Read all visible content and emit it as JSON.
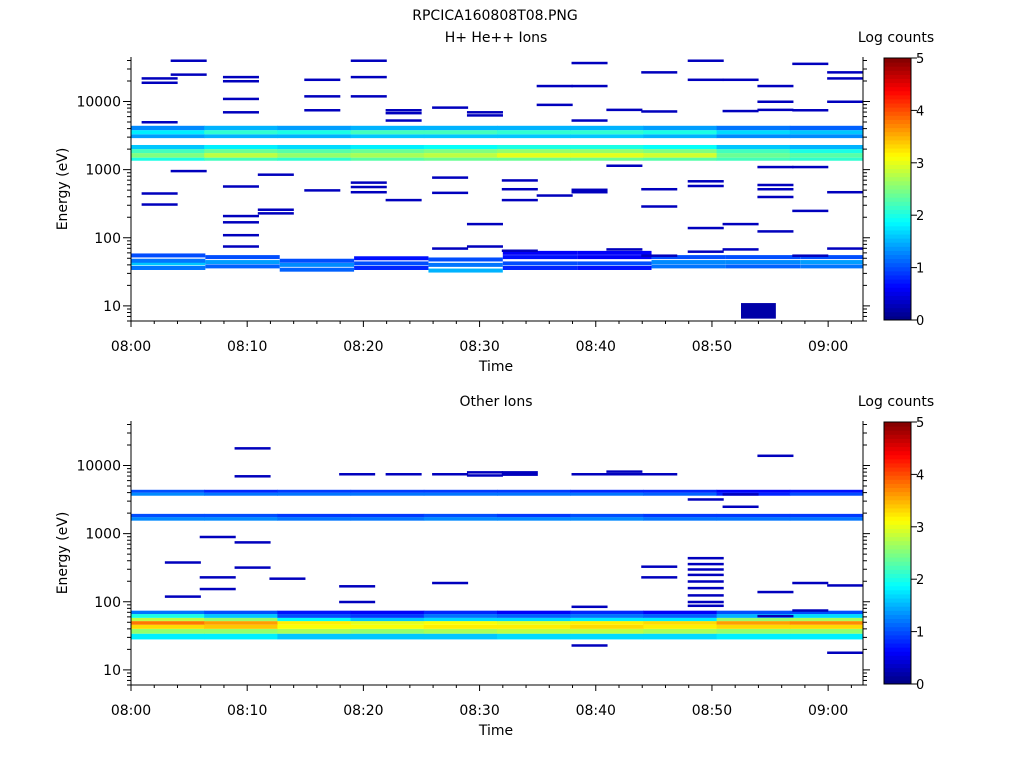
{
  "figure_title": "RPCICA160808T08.PNG",
  "chart_data": [
    {
      "type": "heatmap",
      "title": "H+ He++ Ions",
      "xlabel": "Time",
      "ylabel": "Energy (eV)",
      "x_ticks": [
        "08:00",
        "08:10",
        "08:20",
        "08:30",
        "08:40",
        "08:50",
        "09:00"
      ],
      "y_ticks": [
        "10",
        "100",
        "1000",
        "10000"
      ],
      "y_scale": "log",
      "ylim": [
        6,
        45000
      ],
      "xlim_minutes": [
        0,
        63
      ],
      "colorbar": {
        "label": "Log counts",
        "ticks": [
          "0",
          "1",
          "2",
          "3",
          "4",
          "5"
        ],
        "range": [
          0,
          5
        ]
      },
      "segments": [
        {
          "t": [
            0,
            6.4
          ],
          "ymid": [
            36,
            42,
            46,
            55
          ],
          "v": [
            1.2,
            1.6,
            1.2,
            1.0
          ]
        },
        {
          "t": [
            6.4,
            12.8
          ],
          "ymid": [
            38,
            44,
            52
          ],
          "v": [
            1.1,
            1.4,
            1.0
          ]
        },
        {
          "t": [
            12.8,
            19.2
          ],
          "ymid": [
            34,
            40,
            46
          ],
          "v": [
            1.1,
            1.3,
            1.0
          ]
        },
        {
          "t": [
            19.2,
            25.6
          ],
          "ymid": [
            36,
            42,
            50
          ],
          "v": [
            0.8,
            1.0,
            0.7
          ]
        },
        {
          "t": [
            25.6,
            32
          ],
          "ymid": [
            33,
            40,
            48
          ],
          "v": [
            1.5,
            1.2,
            1.0
          ]
        },
        {
          "t": [
            32,
            38.4
          ],
          "ymid": [
            36,
            42,
            52,
            60
          ],
          "v": [
            0.8,
            1.0,
            0.7,
            0.6
          ]
        },
        {
          "t": [
            38.4,
            44.8
          ],
          "ymid": [
            36,
            42,
            52,
            60
          ],
          "v": [
            0.7,
            1.0,
            0.6,
            0.6
          ]
        },
        {
          "t": [
            44.8,
            51.2
          ],
          "ymid": [
            38,
            44,
            52
          ],
          "v": [
            1.2,
            1.3,
            1.0
          ]
        },
        {
          "t": [
            51.2,
            57.6
          ],
          "ymid": [
            38,
            44,
            52
          ],
          "v": [
            1.1,
            1.3,
            1.0
          ]
        },
        {
          "t": [
            57.6,
            63
          ],
          "ymid": [
            38,
            44,
            52
          ],
          "v": [
            1.2,
            1.4,
            1.0
          ]
        }
      ],
      "bands": [
        {
          "e": [
            1350,
            1500
          ],
          "v": [
            2.0,
            2.2,
            2.1,
            2.3,
            2.4,
            2.4,
            2.4,
            2.3,
            2.2,
            2.1
          ]
        },
        {
          "e": [
            1500,
            1750
          ],
          "v": [
            2.5,
            2.8,
            2.6,
            2.7,
            2.8,
            3.0,
            3.0,
            2.9,
            2.4,
            2.3
          ]
        },
        {
          "e": [
            1750,
            2000
          ],
          "v": [
            2.2,
            2.4,
            2.3,
            2.4,
            2.5,
            2.6,
            2.6,
            2.5,
            2.2,
            2.0
          ]
        },
        {
          "e": [
            2000,
            2300
          ],
          "v": [
            1.6,
            1.8,
            1.7,
            1.8,
            1.9,
            2.0,
            2.0,
            1.9,
            1.6,
            1.5
          ]
        },
        {
          "e": [
            2900,
            3300
          ],
          "v": [
            1.4,
            1.5,
            1.5,
            1.6,
            1.6,
            1.6,
            1.6,
            1.5,
            1.3,
            1.3
          ]
        },
        {
          "e": [
            3300,
            3800
          ],
          "v": [
            1.8,
            2.1,
            2.0,
            2.2,
            2.2,
            2.1,
            2.1,
            2.0,
            1.7,
            1.6
          ]
        },
        {
          "e": [
            3800,
            4400
          ],
          "v": [
            1.3,
            1.5,
            1.4,
            1.5,
            1.5,
            1.5,
            1.5,
            1.4,
            1.2,
            1.1
          ]
        }
      ],
      "specks": [
        [
          1,
          22000
        ],
        [
          1,
          19000
        ],
        [
          1,
          5000
        ],
        [
          1,
          450
        ],
        [
          1,
          310
        ],
        [
          3.5,
          40000
        ],
        [
          3.5,
          25000
        ],
        [
          3.5,
          960
        ],
        [
          8,
          23000
        ],
        [
          8,
          20000
        ],
        [
          8,
          11000
        ],
        [
          8,
          7000
        ],
        [
          8,
          570
        ],
        [
          8,
          210
        ],
        [
          8,
          170
        ],
        [
          8,
          110
        ],
        [
          8,
          75
        ],
        [
          11,
          850
        ],
        [
          11,
          260
        ],
        [
          11,
          230
        ],
        [
          15,
          21000
        ],
        [
          15,
          12000
        ],
        [
          15,
          7500
        ],
        [
          15,
          500
        ],
        [
          19,
          40000
        ],
        [
          19,
          23000
        ],
        [
          19,
          12000
        ],
        [
          19,
          650
        ],
        [
          19,
          560
        ],
        [
          19,
          470
        ],
        [
          22,
          7500
        ],
        [
          22,
          6800
        ],
        [
          22,
          5300
        ],
        [
          22,
          360
        ],
        [
          26,
          8200
        ],
        [
          26,
          770
        ],
        [
          26,
          460
        ],
        [
          26,
          70
        ],
        [
          29,
          7000
        ],
        [
          29,
          6300
        ],
        [
          29,
          160
        ],
        [
          29,
          75
        ],
        [
          32,
          700
        ],
        [
          32,
          520
        ],
        [
          32,
          360
        ],
        [
          32,
          65
        ],
        [
          35,
          17000
        ],
        [
          35,
          9000
        ],
        [
          35,
          420
        ],
        [
          38,
          37000
        ],
        [
          38,
          17000
        ],
        [
          38,
          5300
        ],
        [
          38,
          510
        ],
        [
          38,
          470
        ],
        [
          41,
          7600
        ],
        [
          41,
          1150
        ],
        [
          41,
          68
        ],
        [
          44,
          27000
        ],
        [
          44,
          7200
        ],
        [
          44,
          520
        ],
        [
          44,
          290
        ],
        [
          44,
          55
        ],
        [
          48,
          40000
        ],
        [
          48,
          21000
        ],
        [
          48,
          680
        ],
        [
          48,
          580
        ],
        [
          48,
          140
        ],
        [
          48,
          63
        ],
        [
          51,
          21000
        ],
        [
          51,
          7300
        ],
        [
          51,
          160
        ],
        [
          51,
          68
        ],
        [
          54,
          17000
        ],
        [
          54,
          10000
        ],
        [
          54,
          7600
        ],
        [
          54,
          1100
        ],
        [
          54,
          600
        ],
        [
          54,
          520
        ],
        [
          54,
          400
        ],
        [
          54,
          125
        ],
        [
          57,
          36000
        ],
        [
          57,
          7500
        ],
        [
          57,
          1100
        ],
        [
          57,
          250
        ],
        [
          57,
          55
        ],
        [
          60,
          27000
        ],
        [
          60,
          22000
        ],
        [
          60,
          10000
        ],
        [
          60,
          470
        ],
        [
          60,
          70
        ]
      ],
      "extra_blocks": [
        {
          "t": [
            52.5,
            55.5
          ],
          "e": [
            6.5,
            11
          ],
          "v": 0.2
        }
      ]
    },
    {
      "type": "heatmap",
      "title": "Other Ions",
      "xlabel": "Time",
      "ylabel": "Energy (eV)",
      "x_ticks": [
        "08:00",
        "08:10",
        "08:20",
        "08:30",
        "08:40",
        "08:50",
        "09:00"
      ],
      "y_ticks": [
        "10",
        "100",
        "1000",
        "10000"
      ],
      "y_scale": "log",
      "ylim": [
        6,
        45000
      ],
      "xlim_minutes": [
        0,
        63
      ],
      "colorbar": {
        "label": "Log counts",
        "ticks": [
          "0",
          "1",
          "2",
          "3",
          "4",
          "5"
        ],
        "range": [
          0,
          5
        ]
      },
      "segments": [],
      "bands": [
        {
          "e": [
            28,
            34
          ],
          "v": [
            1.8,
            1.8,
            1.6,
            1.6,
            1.6,
            1.7,
            1.7,
            1.7,
            1.8,
            1.8
          ]
        },
        {
          "e": [
            34,
            40
          ],
          "v": [
            2.6,
            2.6,
            2.7,
            2.6,
            2.7,
            2.8,
            2.8,
            2.7,
            2.6,
            2.6
          ]
        },
        {
          "e": [
            40,
            46
          ],
          "v": [
            3.3,
            3.4,
            3.1,
            3.1,
            3.2,
            3.2,
            3.3,
            3.2,
            3.3,
            3.3
          ]
        },
        {
          "e": [
            46,
            52
          ],
          "v": [
            3.8,
            3.6,
            3.2,
            3.0,
            3.1,
            3.0,
            3.2,
            3.3,
            3.6,
            3.7
          ]
        },
        {
          "e": [
            52,
            58
          ],
          "v": [
            2.8,
            2.6,
            1.9,
            1.6,
            1.7,
            1.7,
            1.8,
            1.8,
            2.6,
            2.7
          ]
        },
        {
          "e": [
            58,
            66
          ],
          "v": [
            2.0,
            1.6,
            1.0,
            0.9,
            1.2,
            1.1,
            1.2,
            1.1,
            1.5,
            1.7
          ]
        },
        {
          "e": [
            66,
            74
          ],
          "v": [
            1.2,
            1.0,
            0.7,
            0.6,
            0.8,
            0.6,
            0.8,
            0.6,
            1.0,
            1.0
          ]
        },
        {
          "e": [
            1550,
            1750
          ],
          "v": [
            1.3,
            1.3,
            1.2,
            1.2,
            1.3,
            1.3,
            1.3,
            1.2,
            1.2,
            1.2
          ]
        },
        {
          "e": [
            1750,
            1950
          ],
          "v": [
            1.0,
            1.0,
            0.9,
            0.9,
            1.0,
            0.9,
            1.0,
            0.9,
            0.9,
            0.9
          ]
        },
        {
          "e": [
            3600,
            4000
          ],
          "v": [
            1.3,
            1.2,
            1.2,
            1.2,
            1.2,
            1.2,
            1.2,
            1.1,
            0.8,
            1.0
          ]
        },
        {
          "e": [
            4000,
            4400
          ],
          "v": [
            1.0,
            0.8,
            0.9,
            0.9,
            0.9,
            0.9,
            0.8,
            0.8,
            0.6,
            0.7
          ]
        }
      ],
      "specks": [
        [
          3,
          380
        ],
        [
          3,
          120
        ],
        [
          6,
          900
        ],
        [
          6,
          230
        ],
        [
          6,
          155
        ],
        [
          9,
          18000
        ],
        [
          9,
          7000
        ],
        [
          9,
          750
        ],
        [
          9,
          320
        ],
        [
          12,
          220
        ],
        [
          18,
          7500
        ],
        [
          18,
          170
        ],
        [
          18,
          100
        ],
        [
          22,
          7500
        ],
        [
          26,
          7500
        ],
        [
          26,
          190
        ],
        [
          29,
          8000
        ],
        [
          29,
          7200
        ],
        [
          32,
          8000
        ],
        [
          32,
          7400
        ],
        [
          38,
          7500
        ],
        [
          38,
          85
        ],
        [
          38,
          23
        ],
        [
          41,
          8200
        ],
        [
          41,
          7500
        ],
        [
          44,
          7500
        ],
        [
          44,
          330
        ],
        [
          44,
          230
        ],
        [
          48,
          440
        ],
        [
          48,
          360
        ],
        [
          48,
          300
        ],
        [
          48,
          250
        ],
        [
          48,
          200
        ],
        [
          48,
          160
        ],
        [
          48,
          125
        ],
        [
          48,
          100
        ],
        [
          48,
          88
        ],
        [
          48,
          3200
        ],
        [
          51,
          2500
        ],
        [
          51,
          3800
        ],
        [
          54,
          14000
        ],
        [
          54,
          140
        ],
        [
          54,
          62
        ],
        [
          57,
          190
        ],
        [
          57,
          75
        ],
        [
          60,
          175
        ],
        [
          60,
          18
        ]
      ],
      "extra_blocks": []
    }
  ]
}
